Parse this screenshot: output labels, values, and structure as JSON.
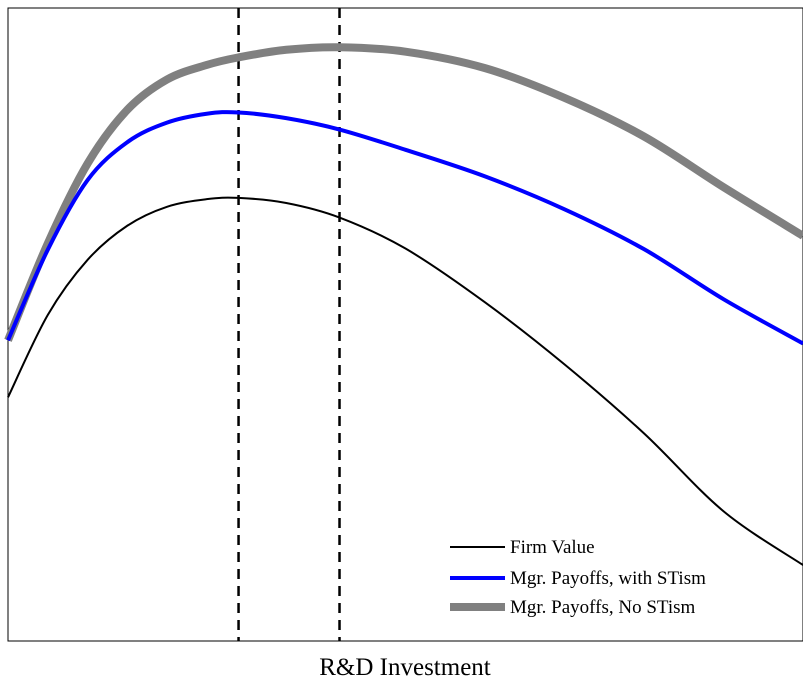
{
  "chart_data": {
    "type": "line",
    "title": "",
    "xlabel": "R&D Investment",
    "ylabel": "",
    "xlim": [
      0,
      1
    ],
    "ylim": [
      0,
      1
    ],
    "grid": false,
    "legend_position": "bottom-right",
    "vlines": [
      0.29,
      0.417
    ],
    "series": [
      {
        "name": "Firm Value",
        "color": "#000000",
        "style": "thin",
        "x": [
          0,
          0.05,
          0.1,
          0.15,
          0.2,
          0.25,
          0.29,
          0.35,
          0.417,
          0.5,
          0.6,
          0.7,
          0.8,
          0.9,
          1.0
        ],
        "y": [
          0.385,
          0.515,
          0.602,
          0.656,
          0.686,
          0.698,
          0.7,
          0.692,
          0.669,
          0.62,
          0.535,
          0.437,
          0.328,
          0.205,
          0.12
        ]
      },
      {
        "name": "Mgr. Payoffs, with STism",
        "color": "#0000ff",
        "style": "medium",
        "x": [
          0,
          0.05,
          0.1,
          0.15,
          0.2,
          0.25,
          0.29,
          0.35,
          0.417,
          0.5,
          0.6,
          0.7,
          0.8,
          0.9,
          1.0
        ],
        "y": [
          0.475,
          0.618,
          0.728,
          0.788,
          0.819,
          0.833,
          0.835,
          0.826,
          0.808,
          0.776,
          0.734,
          0.682,
          0.619,
          0.54,
          0.47
        ]
      },
      {
        "name": "Mgr. Payoffs, No STism",
        "color": "#808080",
        "style": "thick",
        "x": [
          0,
          0.05,
          0.1,
          0.15,
          0.2,
          0.25,
          0.29,
          0.35,
          0.417,
          0.5,
          0.6,
          0.7,
          0.8,
          0.9,
          1.0
        ],
        "y": [
          0.475,
          0.628,
          0.754,
          0.839,
          0.887,
          0.91,
          0.922,
          0.934,
          0.938,
          0.931,
          0.905,
          0.858,
          0.797,
          0.717,
          0.64
        ]
      }
    ]
  }
}
